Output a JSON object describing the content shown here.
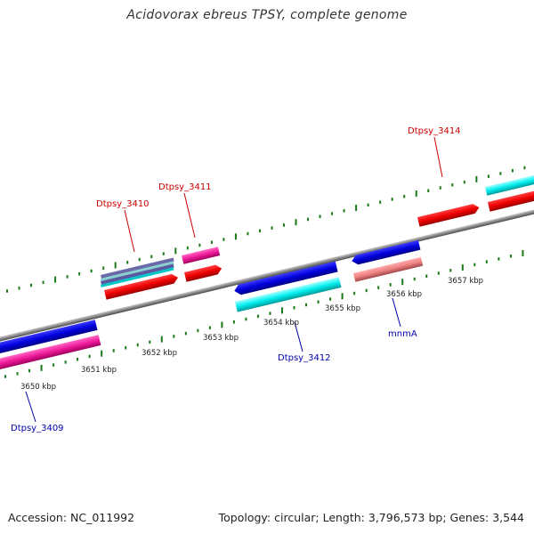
{
  "title": "Acidovorax ebreus TPSY, complete genome",
  "footer": {
    "accession": "Accession: NC_011992",
    "summary": "Topology: circular; Length: 3,796,573 bp; Genes: 3,544"
  },
  "colors": {
    "backbone": "#808080",
    "tick": "#1a7a1a",
    "label_forward": "#cc0000",
    "label_reverse": "#0000aa"
  },
  "scale_labels": [
    "3650 kbp",
    "3651 kbp",
    "3652 kbp",
    "3653 kbp",
    "3654 kbp",
    "3655 kbp",
    "3656 kbp",
    "3657 kbp"
  ],
  "gene_labels": [
    {
      "name": "Dtpsy_3409",
      "strand": "reverse"
    },
    {
      "name": "Dtpsy_3410",
      "strand": "forward"
    },
    {
      "name": "Dtpsy_3411",
      "strand": "forward"
    },
    {
      "name": "Dtpsy_3412",
      "strand": "reverse"
    },
    {
      "name": "mnmA",
      "strand": "reverse"
    },
    {
      "name": "Dtpsy_3414",
      "strand": "forward"
    }
  ]
}
